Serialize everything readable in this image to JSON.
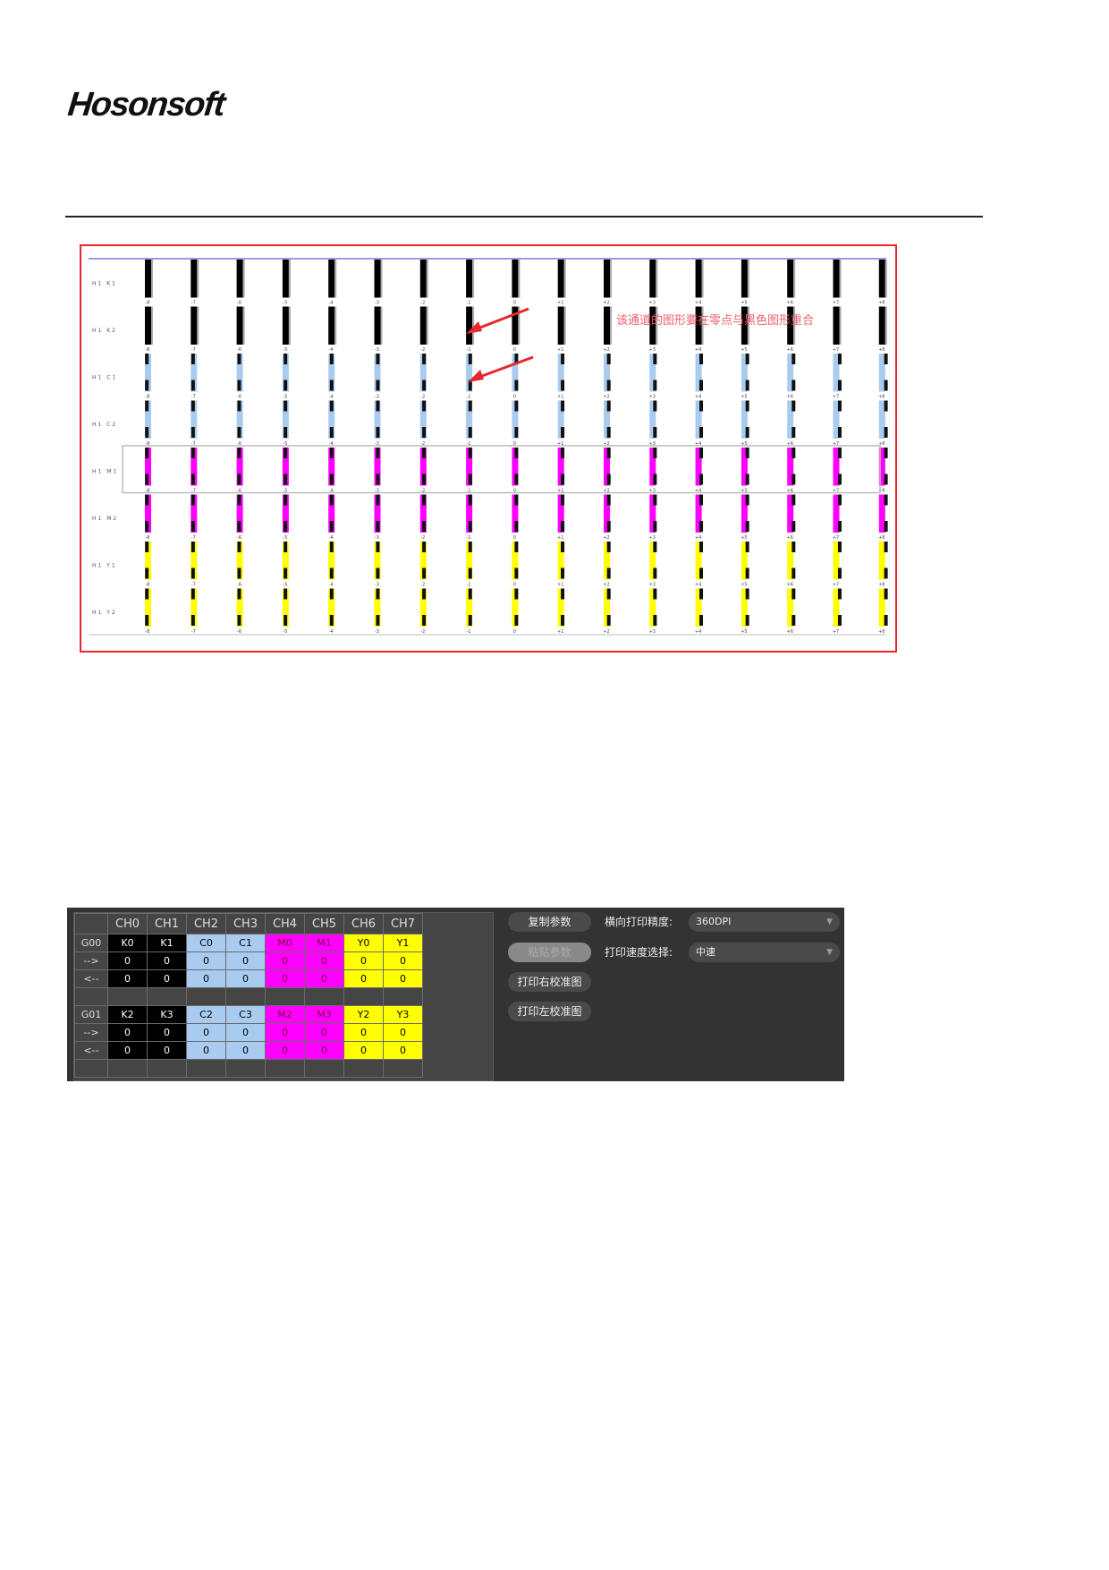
{
  "logo": "Hosonsoft",
  "figure": {
    "row_labels": [
      "H1 K1",
      "H1 K2",
      "H1 C1",
      "H1 C2",
      "H1 M1",
      "H1 M2",
      "H1 Y1",
      "H1 Y2"
    ],
    "row_colors": [
      "#000000",
      "#000000",
      "#a9cbef",
      "#a9cbef",
      "#ff00ff",
      "#ff00ff",
      "#ffff00",
      "#ffff00"
    ],
    "column_labels": [
      "-8",
      "-7",
      "-6",
      "-5",
      "-4",
      "-3",
      "-2",
      "-1",
      "0",
      "+1",
      "+2",
      "+3",
      "+4",
      "+5",
      "+6",
      "+7",
      "+8"
    ],
    "annotation": "该通道的图形要在零点与黑色图形重合",
    "annotation_color": "#f0606a",
    "border_color": "#e8262d"
  },
  "panel": {
    "headers": [
      "",
      "CH0",
      "CH1",
      "CH2",
      "CH3",
      "CH4",
      "CH5",
      "CH6",
      "CH7"
    ],
    "groups": [
      {
        "name": "G00",
        "channels": [
          "K0",
          "K1",
          "C0",
          "C1",
          "M0",
          "M1",
          "Y0",
          "Y1"
        ],
        "forward_label": "-->",
        "forward": [
          "0",
          "0",
          "0",
          "0",
          "0",
          "0",
          "0",
          "0"
        ],
        "back_label": "<--",
        "back": [
          "0",
          "0",
          "0",
          "0",
          "0",
          "0",
          "0",
          "0"
        ]
      },
      {
        "name": "G01",
        "channels": [
          "K2",
          "K3",
          "C2",
          "C3",
          "M2",
          "M3",
          "Y2",
          "Y3"
        ],
        "forward_label": "-->",
        "forward": [
          "0",
          "0",
          "0",
          "0",
          "0",
          "0",
          "0",
          "0"
        ],
        "back_label": "<--",
        "back": [
          "0",
          "0",
          "0",
          "0",
          "0",
          "0",
          "0",
          "0"
        ]
      }
    ],
    "buttons": {
      "copy": "复制参数",
      "paste": "粘贴参数",
      "print_right": "打印右校准图",
      "print_left": "打印左校准图"
    },
    "resolution_label": "横向打印精度:",
    "resolution_value": "360DPI",
    "speed_label": "打印速度选择:",
    "speed_value": "中速"
  }
}
